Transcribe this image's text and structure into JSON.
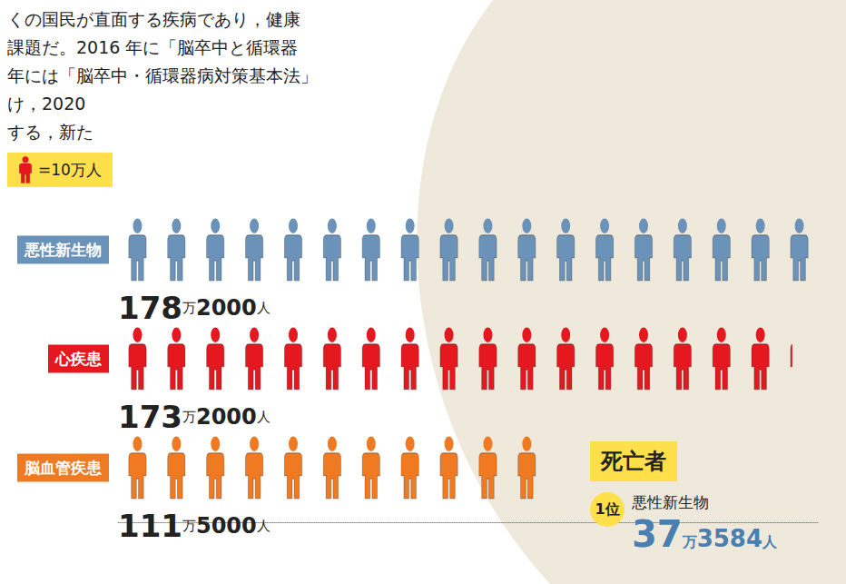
{
  "chart_data": {
    "type": "pictorial_bar",
    "orientation": "horizontal",
    "categories": [
      "悪性新生物",
      "心疾患",
      "脳血管疾患"
    ],
    "values": [
      1782000,
      1732000,
      1115000
    ],
    "value_labels": [
      "178万2000人",
      "173万2000人",
      "111万5000人"
    ],
    "colors": [
      "#6b93b9",
      "#e5171f",
      "#f07a22"
    ],
    "icon_unit": {
      "value": 100000,
      "label": "=10万人"
    },
    "xlim": [
      0,
      1800000
    ],
    "tick_labels": false,
    "data_labels": true
  },
  "paragraph": [
    "くの国民が直面する疾病であり，健康",
    "課題だ。2016 年に「脳卒中と循環器",
    "年には「脳卒中・循環器病対策基本法」",
    "け，2020",
    "する，新た"
  ],
  "death": {
    "heading": "死亡者",
    "rank": "1位",
    "name": "悪性新生物",
    "value": 373584,
    "value_label": "37万3584人"
  }
}
